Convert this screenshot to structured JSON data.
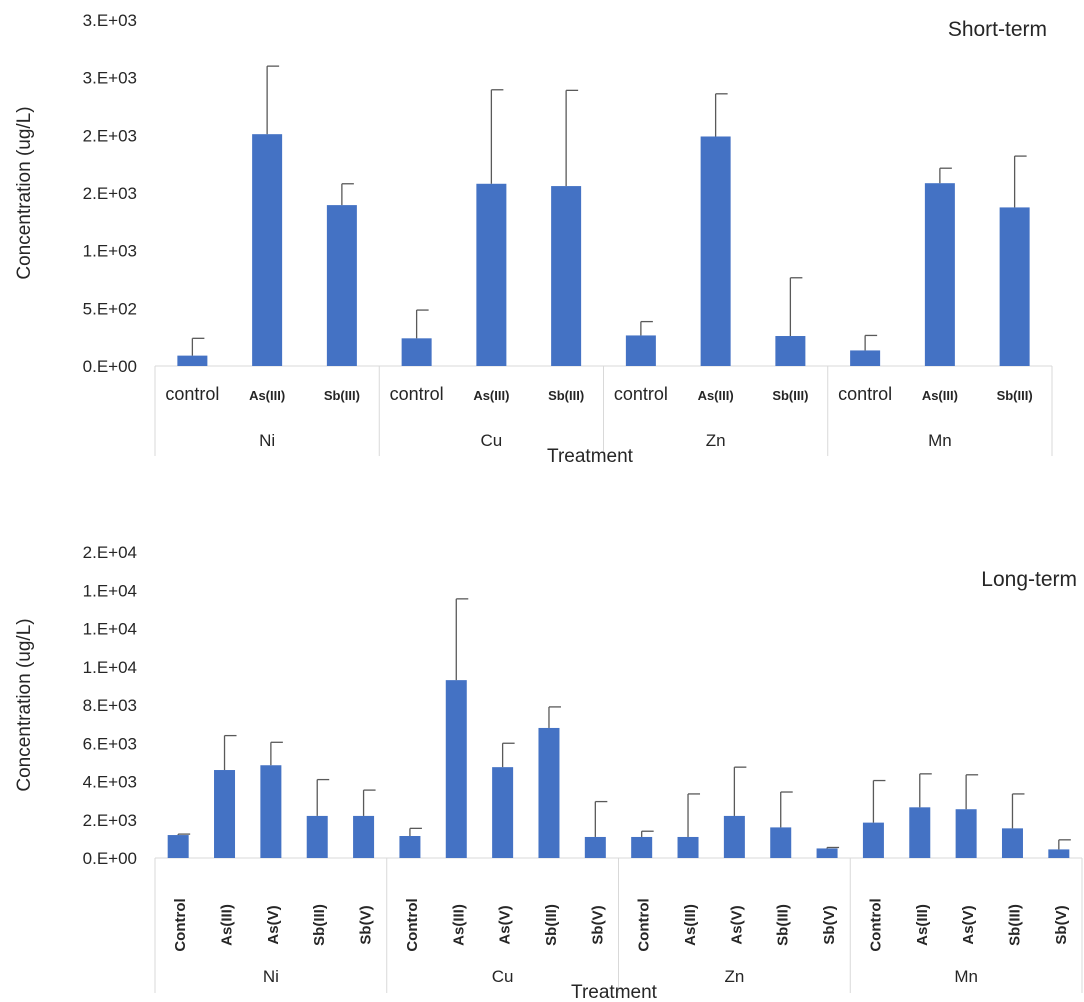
{
  "chart_data": [
    {
      "type": "bar",
      "title": "Short-term",
      "xlabel": "Treatment",
      "ylabel": "Concentration (ug/L)",
      "y_tick_labels": [
        "0.E+00",
        "5.E+02",
        "1.E+03",
        "2.E+03",
        "2.E+03",
        "3.E+03",
        "3.E+03"
      ],
      "ylim": [
        0,
        3000
      ],
      "groups": [
        {
          "name": "Ni",
          "categories": [
            "control",
            "As(III)",
            "Sb(III)"
          ],
          "values": [
            90,
            2010,
            1395
          ],
          "errors": [
            150,
            590,
            185
          ]
        },
        {
          "name": "Cu",
          "categories": [
            "control",
            "As(III)",
            "Sb(III)"
          ],
          "values": [
            240,
            1580,
            1560
          ],
          "errors": [
            245,
            815,
            830
          ]
        },
        {
          "name": "Zn",
          "categories": [
            "control",
            "As(III)",
            "Sb(III)"
          ],
          "values": [
            265,
            1990,
            260
          ],
          "errors": [
            120,
            370,
            505
          ]
        },
        {
          "name": "Mn",
          "categories": [
            "control",
            "As(III)",
            "Sb(III)"
          ],
          "values": [
            135,
            1585,
            1375
          ],
          "errors": [
            130,
            130,
            445
          ]
        }
      ],
      "bar_color": "#4472C4",
      "grid": false,
      "legend": "none"
    },
    {
      "type": "bar",
      "title": "Long-term",
      "xlabel": "Treatment",
      "ylabel": "Concentration (ug/L)",
      "y_tick_labels": [
        "0.E+00",
        "2.E+03",
        "4.E+03",
        "6.E+03",
        "8.E+03",
        "1.E+04",
        "1.E+04",
        "1.E+04",
        "2.E+04"
      ],
      "ylim": [
        0,
        16000
      ],
      "groups": [
        {
          "name": "Ni",
          "categories": [
            "Control",
            "As(III)",
            "As(V)",
            "Sb(III)",
            "Sb(V)"
          ],
          "values": [
            1200,
            4600,
            4850,
            2200,
            2200
          ],
          "errors": [
            50,
            1800,
            1200,
            1900,
            1350
          ]
        },
        {
          "name": "Cu",
          "categories": [
            "Control",
            "As(III)",
            "As(V)",
            "Sb(III)",
            "Sb(V)"
          ],
          "values": [
            1150,
            9300,
            4750,
            6800,
            1100
          ],
          "errors": [
            400,
            4250,
            1250,
            1100,
            1850
          ]
        },
        {
          "name": "Zn",
          "categories": [
            "Control",
            "As(III)",
            "As(V)",
            "Sb(III)",
            "Sb(V)"
          ],
          "values": [
            1100,
            1100,
            2200,
            1600,
            500
          ],
          "errors": [
            300,
            2250,
            2550,
            1850,
            50
          ]
        },
        {
          "name": "Mn",
          "categories": [
            "Control",
            "As(III)",
            "As(V)",
            "Sb(III)",
            "Sb(V)"
          ],
          "values": [
            1850,
            2650,
            2550,
            1550,
            450
          ],
          "errors": [
            2200,
            1750,
            1800,
            1800,
            500
          ]
        }
      ],
      "bar_color": "#4472C4",
      "grid": false,
      "legend": "none"
    }
  ]
}
